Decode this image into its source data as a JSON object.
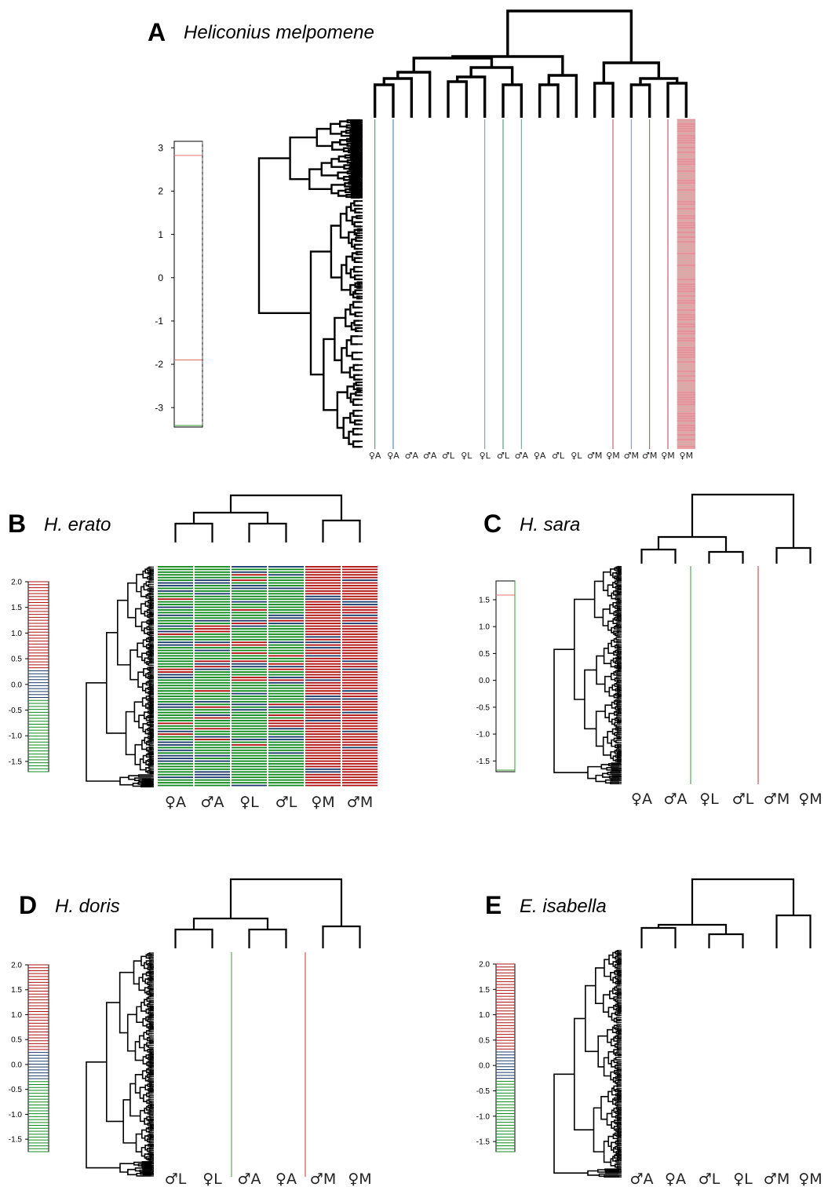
{
  "colors": {
    "up": "#b01010",
    "mid": "#1a3a6a",
    "down": "#0f8a1f",
    "ink": "#000000"
  },
  "chart_data": [
    {
      "type": "heatmap",
      "panel": "A",
      "title": "Heliconius melpomene",
      "columns": [
        "♀A",
        "♀A",
        "♂A",
        "♂A",
        "♂L",
        "♀L",
        "♀L",
        "♂L",
        "♂A",
        "♀A",
        "♂L",
        "♀L",
        "♂M",
        "♀M",
        "♂M",
        "♂M",
        "♀M",
        "♀M"
      ],
      "color_key": {
        "ticks": [
          "3",
          "2",
          "1",
          "0",
          "-1",
          "-2",
          "-3"
        ],
        "range": [
          -3.45,
          3.15
        ]
      },
      "visible_columns": "only a few thin colored lines; last column (♀M) filled pink"
    },
    {
      "type": "heatmap",
      "panel": "B",
      "title": "H. erato",
      "columns": [
        "♀A",
        "♂A",
        "♀L",
        "♂L",
        "♀M",
        "♂M"
      ],
      "color_key": {
        "ticks": [
          "2.0",
          "1.5",
          "1.0",
          "0.5",
          "0.0",
          "-0.5",
          "-1.0",
          "-1.5"
        ],
        "range": [
          -1.7,
          2.0
        ]
      },
      "pattern": "A and L columns predominantly green (down), M columns predominantly red (up)"
    },
    {
      "type": "heatmap",
      "panel": "C",
      "title": "H. sara",
      "columns": [
        "♀A",
        "♂A",
        "♀L",
        "♂L",
        "♂M",
        "♀M"
      ],
      "color_key": {
        "ticks": [
          "1.5",
          "1.0",
          "0.5",
          "0.0",
          "-0.5",
          "-1.0",
          "-1.5"
        ],
        "range": [
          -1.7,
          1.85
        ]
      }
    },
    {
      "type": "heatmap",
      "panel": "D",
      "title": "H. doris",
      "columns": [
        "♂L",
        "♀L",
        "♂A",
        "♀A",
        "♂M",
        "♀M"
      ],
      "color_key": {
        "ticks": [
          "2.0",
          "1.5",
          "1.0",
          "0.5",
          "0.0",
          "-0.5",
          "-1.0",
          "-1.5"
        ],
        "range": [
          -1.75,
          2.0
        ]
      }
    },
    {
      "type": "heatmap",
      "panel": "E",
      "title": "E. isabella",
      "columns": [
        "♂A",
        "♀A",
        "♂L",
        "♀L",
        "♂M",
        "♀M"
      ],
      "color_key": {
        "ticks": [
          "2.0",
          "1.5",
          "1.0",
          "0.5",
          "0.0",
          "-0.5",
          "-1.0",
          "-1.5"
        ],
        "range": [
          -1.7,
          2.0
        ]
      }
    }
  ]
}
